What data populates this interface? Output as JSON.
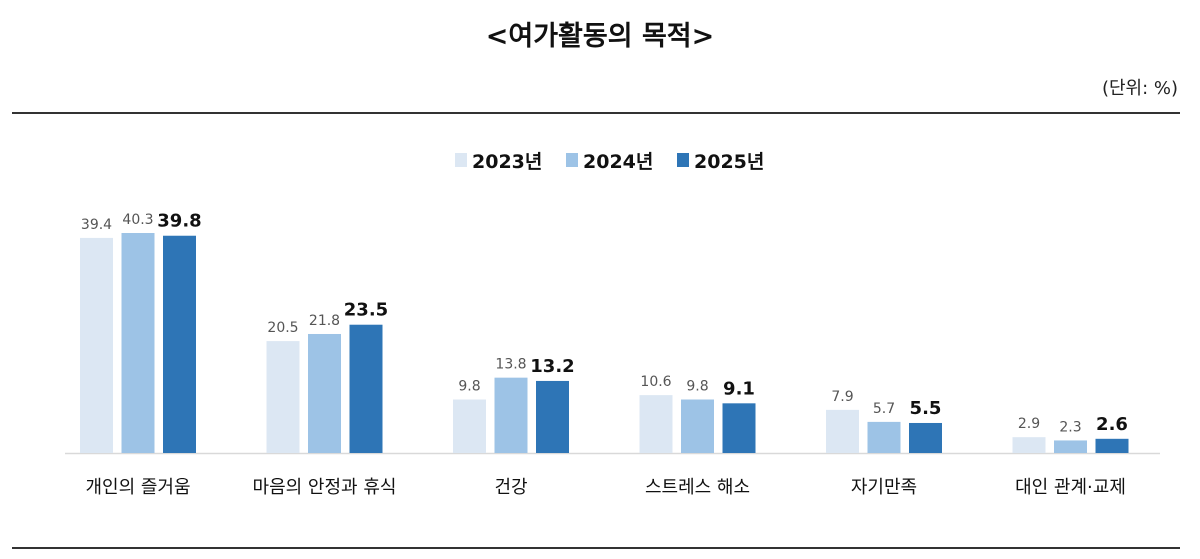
{
  "title": "<여가활동의 목적>",
  "unit": "(단위: %)",
  "chart_data": {
    "type": "bar",
    "categories": [
      "개인의 즐거움",
      "마음의 안정과 휴식",
      "건강",
      "스트레스 해소",
      "자기만족",
      "대인 관계·교제"
    ],
    "series": [
      {
        "name": "2023년",
        "values": [
          39.4,
          20.5,
          9.8,
          10.6,
          7.9,
          2.9
        ],
        "color": "#dce7f3"
      },
      {
        "name": "2024년",
        "values": [
          40.3,
          21.8,
          13.8,
          9.8,
          5.7,
          2.3
        ],
        "color": "#9dc3e6"
      },
      {
        "name": "2025년",
        "values": [
          39.8,
          23.5,
          13.2,
          9.1,
          5.5,
          2.6
        ],
        "color": "#2e75b6"
      }
    ],
    "ylim": [
      0,
      42
    ],
    "legend": "top-center",
    "grid": false
  }
}
